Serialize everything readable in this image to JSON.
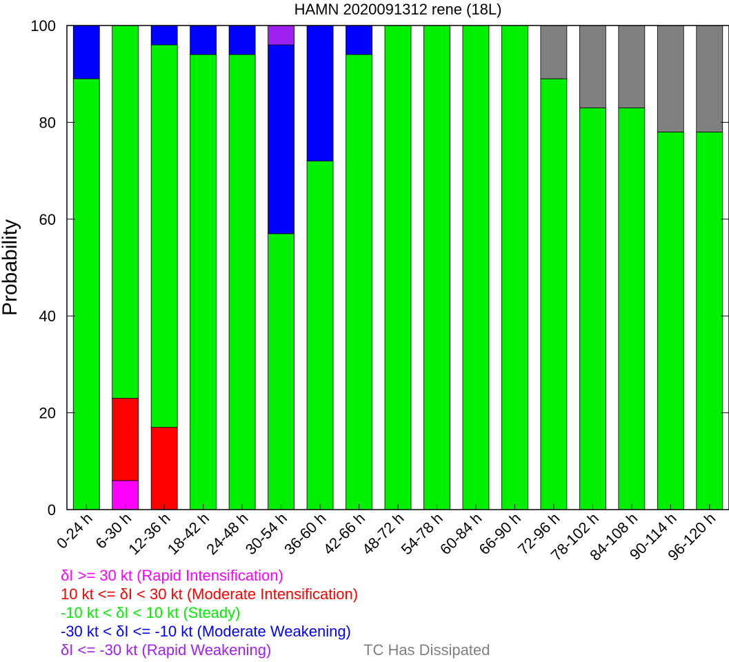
{
  "chart_data": {
    "type": "bar",
    "stacked": true,
    "title": "HAMN 2020091312 rene (18L)",
    "ylabel": "Probability",
    "xlabel": "",
    "ylim": [
      0,
      100
    ],
    "yticks": [
      "0",
      "20",
      "40",
      "60",
      "80",
      "100"
    ],
    "categories": [
      "0-24 h",
      "6-30 h",
      "12-36 h",
      "18-42 h",
      "24-48 h",
      "30-54 h",
      "36-60 h",
      "42-66 h",
      "48-72 h",
      "54-78 h",
      "60-84 h",
      "66-90 h",
      "72-96 h",
      "78-102 h",
      "84-108 h",
      "90-114 h",
      "96-120 h"
    ],
    "series": [
      {
        "name": "δI >= 30 kt (Rapid Intensification)",
        "color": "#ff00ff",
        "values": [
          0,
          6,
          0,
          0,
          0,
          0,
          0,
          0,
          0,
          0,
          0,
          0,
          0,
          0,
          0,
          0,
          0
        ]
      },
      {
        "name": "10 kt <= δI < 30 kt (Moderate Intensification)",
        "color": "#ff0000",
        "values": [
          0,
          17,
          17,
          0,
          0,
          0,
          0,
          0,
          0,
          0,
          0,
          0,
          0,
          0,
          0,
          0,
          0
        ]
      },
      {
        "name": "-10 kt < δI < 10 kt (Steady)",
        "color": "#00ee00",
        "values": [
          89,
          77,
          79,
          94,
          94,
          57,
          72,
          94,
          100,
          100,
          100,
          100,
          89,
          83,
          83,
          78,
          78
        ]
      },
      {
        "name": "-30 kt < δI <= -10 kt (Moderate Weakening)",
        "color": "#0000ff",
        "values": [
          11,
          0,
          4,
          6,
          6,
          39,
          28,
          6,
          0,
          0,
          0,
          0,
          0,
          0,
          0,
          0,
          0
        ]
      },
      {
        "name": "δI <= -30 kt (Rapid Weakening)",
        "color": "#a020f0",
        "values": [
          0,
          0,
          0,
          0,
          0,
          4,
          0,
          0,
          0,
          0,
          0,
          0,
          0,
          0,
          0,
          0,
          0
        ]
      },
      {
        "name": "TC Has Dissipated",
        "color": "#808080",
        "values": [
          0,
          0,
          0,
          0,
          0,
          0,
          0,
          0,
          0,
          0,
          0,
          0,
          11,
          17,
          17,
          22,
          22
        ]
      }
    ],
    "legend_placement": "bottom-left",
    "grid": false
  }
}
